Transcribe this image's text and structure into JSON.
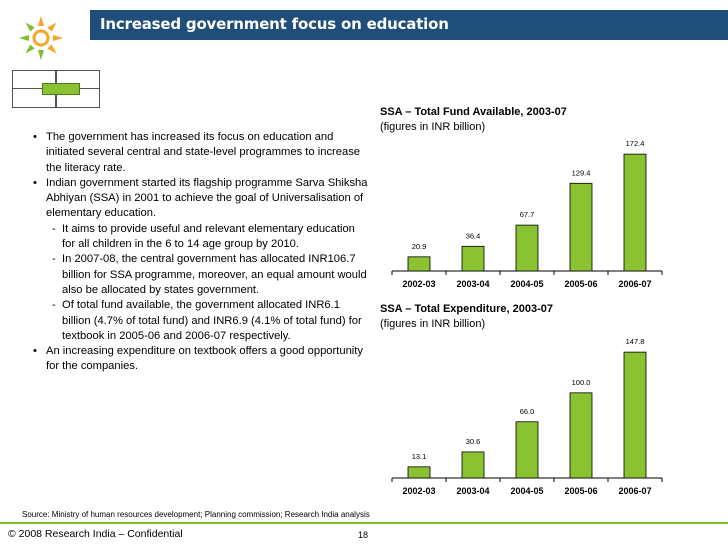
{
  "header": {
    "title": "Increased government focus on education",
    "band_color": "#1f4e7a"
  },
  "bullets": [
    {
      "level": 1,
      "text": "The government has increased its focus on education and initiated several central and state-level programmes to increase the literacy rate."
    },
    {
      "level": 1,
      "text": "Indian government started its flagship programme Sarva Shiksha Abhiyan (SSA) in 2001 to achieve the goal of Universalisation of elementary education."
    },
    {
      "level": 2,
      "text": "It aims to provide useful and relevant elementary education for all children in the 6 to 14 age group by 2010."
    },
    {
      "level": 2,
      "text": "In 2007-08, the central government has allocated INR106.7 billion for SSA programme, moreover, an equal amount would also be allocated by states government."
    },
    {
      "level": 2,
      "text": "Of total fund available, the government allocated INR6.1 billion (4.7% of total fund) and INR6.9 (4.1% of total fund) for textbook in 2005-06 and 2006-07 respectively."
    },
    {
      "level": 1,
      "text": "An increasing expenditure on textbook offers a good opportunity for the companies."
    }
  ],
  "chart_data": [
    {
      "type": "bar",
      "title": "SSA – Total Fund Available, 2003-07",
      "subtitle": "(figures in INR billion)",
      "categories": [
        "2002-03",
        "2003-04",
        "2004-05",
        "2005-06",
        "2006-07"
      ],
      "values": [
        20.9,
        36.4,
        67.7,
        129.4,
        172.4
      ],
      "value_labels": [
        "20.9",
        "36.4",
        "67.7",
        "129.4",
        "172.4"
      ],
      "ylim": [
        0,
        180
      ],
      "bar_color": "#8ac232"
    },
    {
      "type": "bar",
      "title": "SSA – Total Expenditure, 2003-07",
      "subtitle": "(figures in INR billion)",
      "categories": [
        "2002-03",
        "2003-04",
        "2004-05",
        "2005-06",
        "2006-07"
      ],
      "values": [
        13.1,
        30.6,
        66.0,
        100.0,
        147.8
      ],
      "value_labels": [
        "13.1",
        "30.6",
        "66.0",
        "100.0",
        "147.8"
      ],
      "ylim": [
        0,
        155
      ],
      "bar_color": "#8ac232"
    }
  ],
  "source": "Source: Ministry of human resources development; Planning commission; Research India analysis",
  "footer": {
    "copyright": "© 2008 Research India – Confidential",
    "page": "18"
  }
}
